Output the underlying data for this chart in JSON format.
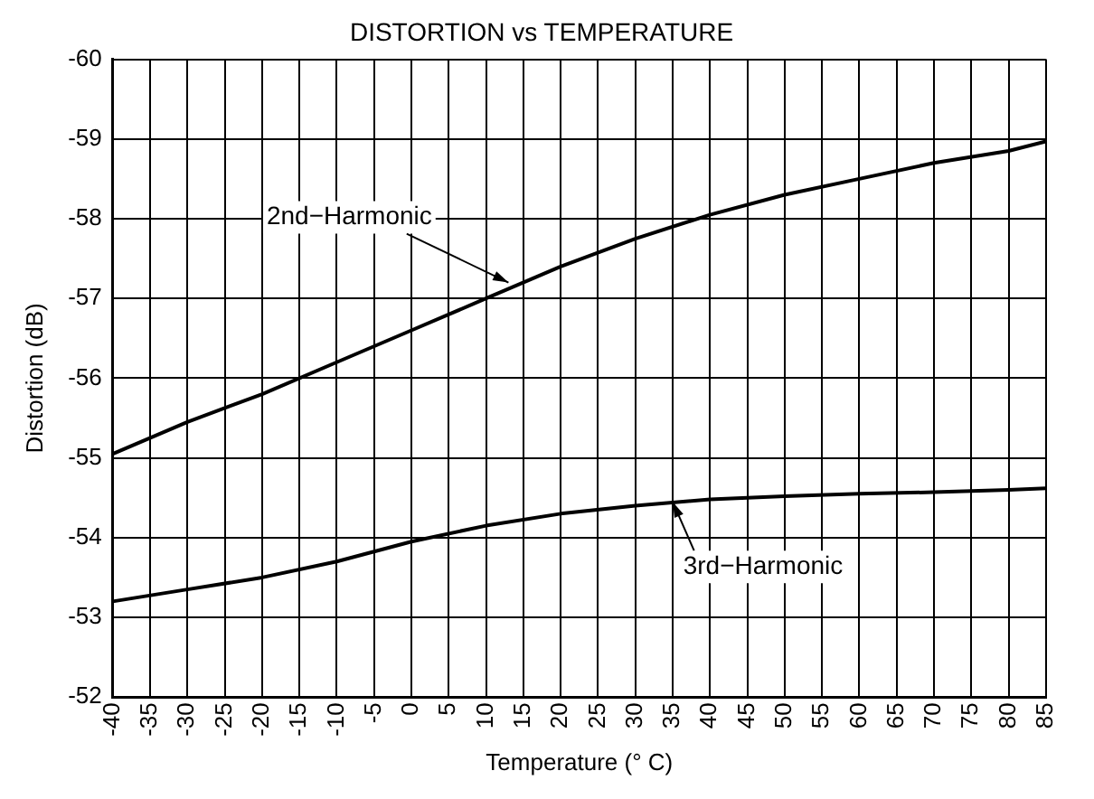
{
  "chart_data": {
    "type": "line",
    "title": "DISTORTION vs TEMPERATURE",
    "xlabel": "Temperature (° C)",
    "ylabel": "Distortion (dB)",
    "series": [
      {
        "color": "#000000",
        "x": [
          -40,
          -30,
          -20,
          -10,
          0,
          10,
          20,
          30,
          40,
          50,
          60,
          70,
          80,
          85
        ],
        "values": [
          -55.05,
          -55.45,
          -55.8,
          -56.2,
          -56.6,
          -57.0,
          -57.4,
          -57.75,
          -58.05,
          -58.3,
          -58.5,
          -58.7,
          -58.85,
          -58.97
        ]
      },
      {
        "color": "#000000",
        "x": [
          -40,
          -30,
          -20,
          -10,
          0,
          10,
          20,
          30,
          40,
          50,
          60,
          70,
          80,
          85
        ],
        "values": [
          -53.2,
          -53.35,
          -53.5,
          -53.7,
          -53.95,
          -54.15,
          -54.3,
          -54.4,
          -54.48,
          -54.52,
          -54.55,
          -54.57,
          -54.6,
          -54.62
        ]
      }
    ],
    "annotations": [
      {
        "text": "2nd−Harmonic",
        "x": 13,
        "y": -57.2
      },
      {
        "text": "3rd−Harmonic",
        "x": 35,
        "y": -54.45
      }
    ],
    "xlim": [
      -40,
      85
    ],
    "xticks": [
      -40,
      -35,
      -30,
      -25,
      -20,
      -15,
      -10,
      -5,
      0,
      5,
      10,
      15,
      20,
      25,
      30,
      35,
      40,
      45,
      50,
      55,
      60,
      65,
      70,
      75,
      80,
      85
    ],
    "ylim": [
      -52,
      -60
    ],
    "yticks": [
      -52,
      -53,
      -54,
      -55,
      -56,
      -57,
      -58,
      -59,
      -60
    ],
    "grid": true,
    "legend": false,
    "marker": "none",
    "line_style": "solid"
  }
}
